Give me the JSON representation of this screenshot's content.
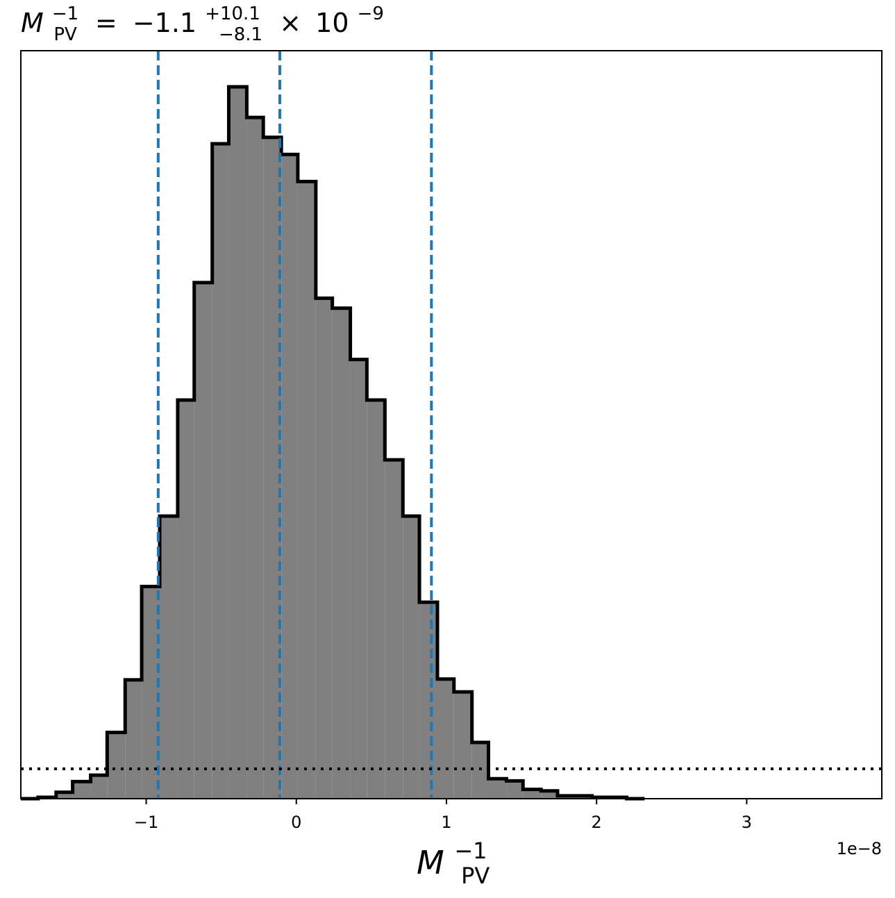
{
  "chart_data": {
    "type": "bar",
    "title": {
      "symbol": "M",
      "subscript": "PV",
      "superscript": "−1",
      "equals": "=",
      "median": "−1.1",
      "plus": "+10.1",
      "minus": "−8.1",
      "times": "×",
      "base": "10",
      "exponent": "−9"
    },
    "xlabel": {
      "symbol": "M",
      "subscript": "PV",
      "superscript": "−1"
    },
    "offset_text": "1e−8",
    "x_ticks": [
      {
        "value": -1,
        "label": "−1"
      },
      {
        "value": 0,
        "label": "0"
      },
      {
        "value": 1,
        "label": "1"
      },
      {
        "value": 2,
        "label": "2"
      },
      {
        "value": 3,
        "label": "3"
      }
    ],
    "xlim": [
      -1.835,
      3.9
    ],
    "ylim": [
      0,
      1.0
    ],
    "x_unit_scale": "1e-8",
    "histogram": {
      "color_fill": "#808080",
      "color_edge": "#000000",
      "bin_edges": [
        -1.835,
        -1.72,
        -1.6,
        -1.49,
        -1.37,
        -1.26,
        -1.14,
        -1.03,
        -0.91,
        -0.79,
        -0.68,
        -0.56,
        -0.45,
        -0.33,
        -0.22,
        -0.1,
        0.01,
        0.13,
        0.24,
        0.36,
        0.47,
        0.59,
        0.71,
        0.82,
        0.94,
        1.05,
        1.17,
        1.28,
        1.4,
        1.51,
        1.63,
        1.74,
        1.86,
        1.97,
        2.09,
        2.2,
        2.32
      ],
      "values": [
        0.0,
        0.002,
        0.009,
        0.024,
        0.033,
        0.093,
        0.167,
        0.298,
        0.397,
        0.56,
        0.725,
        0.92,
        1.0,
        0.957,
        0.929,
        0.905,
        0.867,
        0.703,
        0.689,
        0.617,
        0.56,
        0.476,
        0.397,
        0.276,
        0.168,
        0.15,
        0.079,
        0.028,
        0.025,
        0.013,
        0.011,
        0.004,
        0.004,
        0.002,
        0.002,
        0.0
      ]
    },
    "quantile_lines": {
      "color": "#1f77b4",
      "style": "dashed",
      "values": [
        -0.92,
        -0.11,
        0.9
      ]
    },
    "reference_line": {
      "color": "#000000",
      "style": "dotted",
      "y": 0.042
    },
    "grid": false,
    "legend": "none"
  }
}
